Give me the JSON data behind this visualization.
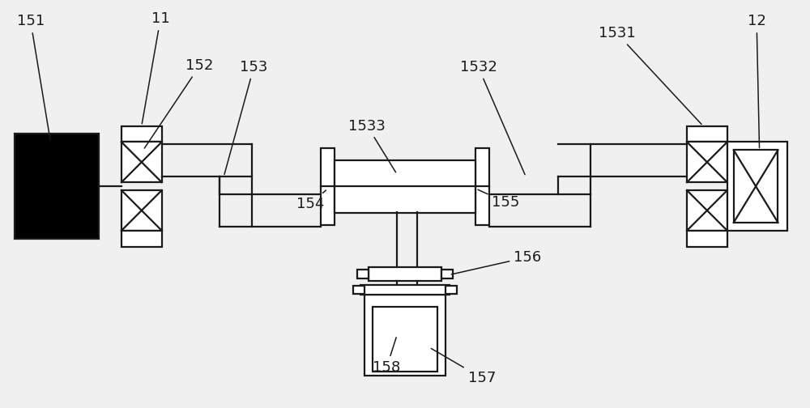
{
  "bg_color": "#f0f0f0",
  "line_color": "#1a1a1a",
  "lw": 1.6,
  "fig_width": 10.0,
  "fig_height": 5.04,
  "label_fontsize": 13
}
